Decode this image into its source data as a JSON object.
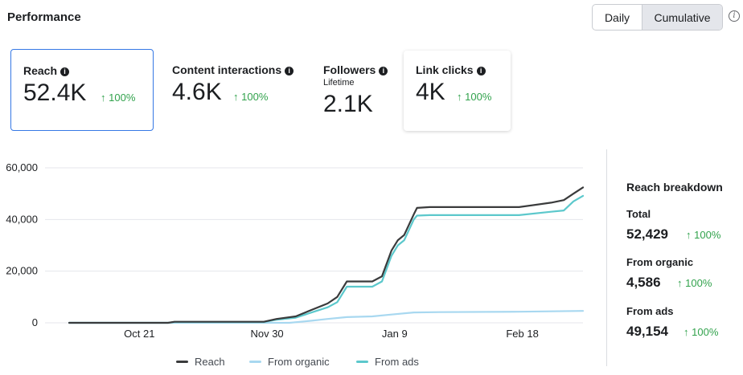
{
  "header": {
    "title": "Performance"
  },
  "view_toggle": {
    "daily": "Daily",
    "cumulative": "Cumulative",
    "selected": "Cumulative"
  },
  "info_icon": "info-circle-icon",
  "metrics": [
    {
      "label": "Reach",
      "value": "52.4K",
      "delta": "100%",
      "selected": true
    },
    {
      "label": "Content interactions",
      "value": "4.6K",
      "delta": "100%"
    },
    {
      "label": "Followers",
      "sublabel": "Lifetime",
      "value": "2.1K"
    },
    {
      "label": "Link clicks",
      "value": "4K",
      "delta": "100%"
    }
  ],
  "breakdown": {
    "title": "Reach breakdown",
    "items": [
      {
        "label": "Total",
        "value": "52,429",
        "delta": "100%"
      },
      {
        "label": "From organic",
        "value": "4,586",
        "delta": "100%"
      },
      {
        "label": "From ads",
        "value": "49,154",
        "delta": "100%"
      }
    ]
  },
  "legend": [
    {
      "name": "Reach",
      "color": "#3a3b3c"
    },
    {
      "name": "From organic",
      "color": "#a8d8f0"
    },
    {
      "name": "From ads",
      "color": "#5cc8cc"
    }
  ],
  "chart_data": {
    "type": "line",
    "y_ticks": [
      "0",
      "20,000",
      "40,000",
      "60,000"
    ],
    "ylim": [
      0,
      60000
    ],
    "x_ticks": [
      "Oct 21",
      "Nov 30",
      "Jan 9",
      "Feb 18"
    ],
    "x_tick_days": [
      21,
      61,
      101,
      141
    ],
    "xlim_days": [
      -1,
      160
    ],
    "grid": true,
    "series": [
      {
        "name": "Reach",
        "color": "#3a3b3c",
        "points": [
          [
            -1,
            0
          ],
          [
            30,
            0
          ],
          [
            32,
            400
          ],
          [
            60,
            400
          ],
          [
            64,
            1500
          ],
          [
            70,
            2500
          ],
          [
            75,
            5000
          ],
          [
            80,
            7500
          ],
          [
            83,
            10000
          ],
          [
            86,
            16000
          ],
          [
            94,
            16000
          ],
          [
            97,
            18000
          ],
          [
            100,
            28000
          ],
          [
            102,
            32000
          ],
          [
            104,
            34000
          ],
          [
            107,
            42000
          ],
          [
            108,
            44500
          ],
          [
            112,
            44800
          ],
          [
            140,
            44800
          ],
          [
            150,
            46500
          ],
          [
            154,
            47500
          ],
          [
            157,
            50000
          ],
          [
            160,
            52429
          ]
        ]
      },
      {
        "name": "From organic",
        "color": "#a8d8f0",
        "points": [
          [
            -1,
            0
          ],
          [
            68,
            0
          ],
          [
            75,
            800
          ],
          [
            80,
            1500
          ],
          [
            86,
            2200
          ],
          [
            94,
            2500
          ],
          [
            100,
            3200
          ],
          [
            107,
            4000
          ],
          [
            115,
            4150
          ],
          [
            140,
            4300
          ],
          [
            160,
            4586
          ]
        ]
      },
      {
        "name": "From ads",
        "color": "#5cc8cc",
        "points": [
          [
            -1,
            0
          ],
          [
            30,
            0
          ],
          [
            32,
            300
          ],
          [
            60,
            300
          ],
          [
            64,
            1200
          ],
          [
            70,
            2000
          ],
          [
            75,
            4000
          ],
          [
            80,
            6000
          ],
          [
            83,
            8000
          ],
          [
            86,
            14000
          ],
          [
            94,
            14000
          ],
          [
            97,
            16000
          ],
          [
            100,
            26000
          ],
          [
            102,
            30000
          ],
          [
            104,
            32000
          ],
          [
            107,
            40000
          ],
          [
            108,
            41500
          ],
          [
            112,
            41700
          ],
          [
            140,
            41700
          ],
          [
            150,
            43000
          ],
          [
            154,
            43500
          ],
          [
            157,
            47000
          ],
          [
            160,
            49154
          ]
        ]
      }
    ]
  }
}
